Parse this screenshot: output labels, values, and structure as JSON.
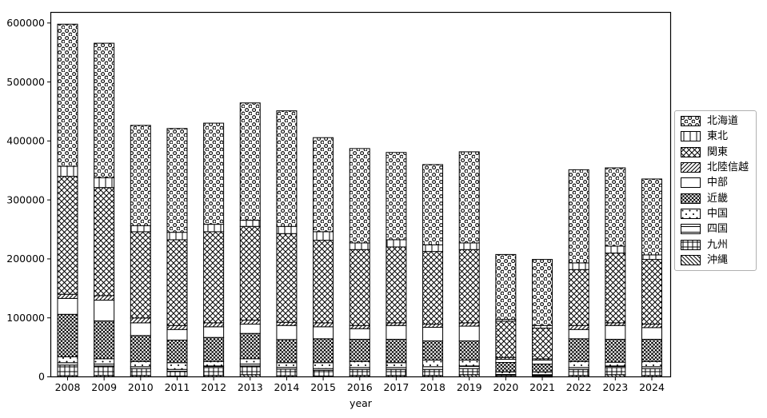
{
  "figure": {
    "background": "#ffffff"
  },
  "chart_data": {
    "type": "bar",
    "stacked": true,
    "stack_order": "first-series-on-top",
    "title": "",
    "xlabel": "year",
    "ylabel": "",
    "categories": [
      "2008",
      "2009",
      "2010",
      "2011",
      "2012",
      "2013",
      "2014",
      "2015",
      "2016",
      "2017",
      "2018",
      "2019",
      "2020",
      "2021",
      "2022",
      "2023",
      "2024"
    ],
    "yticks": [
      0,
      100000,
      200000,
      300000,
      400000,
      500000,
      600000
    ],
    "ylim": [
      0,
      618000
    ],
    "grid": false,
    "legend_position": "outside-right",
    "bar_style": {
      "fill": "#ffffff",
      "edge": "#000000",
      "monochrome_hatches": true
    },
    "colors": {
      "text": "#000000",
      "axes": "#000000",
      "legend_border": "#b0b0b0"
    },
    "series": [
      {
        "name": "北海道",
        "hatch": "o",
        "values": [
          241000,
          228000,
          170000,
          176000,
          171500,
          199000,
          196000,
          159500,
          160000,
          148000,
          136000,
          154500,
          110000,
          112000,
          158000,
          132700,
          128700
        ]
      },
      {
        "name": "東北",
        "hatch": "|",
        "values": [
          17000,
          16700,
          10300,
          12600,
          12600,
          10400,
          12200,
          14500,
          11300,
          12200,
          11300,
          11300,
          3100,
          4500,
          11300,
          11800,
          7700
        ]
      },
      {
        "name": "関東",
        "hatch": "xx",
        "values": [
          200000,
          183300,
          146300,
          145400,
          154500,
          158900,
          150400,
          140000,
          128700,
          128700,
          123200,
          124200,
          61500,
          51900,
          94800,
          118300,
          109700
        ]
      },
      {
        "name": "北陸信越",
        "hatch": "//",
        "values": [
          7000,
          7700,
          8200,
          6800,
          6700,
          6800,
          5400,
          6700,
          5400,
          4500,
          5400,
          5600,
          3100,
          2300,
          6800,
          4500,
          5900
        ]
      },
      {
        "name": "中部",
        "hatch": "",
        "values": [
          27000,
          35200,
          21600,
          18000,
          18100,
          15800,
          23900,
          20300,
          18000,
          23400,
          23100,
          25100,
          5400,
          6700,
          15700,
          23400,
          19800
        ]
      },
      {
        "name": "近畿",
        "hatch": "*",
        "values": [
          72000,
          64100,
          43900,
          38300,
          40700,
          42900,
          39200,
          40600,
          37600,
          39700,
          32500,
          32500,
          15900,
          13600,
          38500,
          38900,
          37600
        ]
      },
      {
        "name": "中国",
        "hatch": "..",
        "values": [
          10000,
          9000,
          8900,
          11400,
          7600,
          9000,
          8000,
          10000,
          10300,
          8200,
          11200,
          9900,
          4400,
          4400,
          10300,
          6300,
          8900
        ]
      },
      {
        "name": "四国",
        "hatch": "-",
        "values": [
          4000,
          3200,
          3200,
          3100,
          2700,
          3200,
          3000,
          2800,
          3200,
          3200,
          4600,
          4500,
          1000,
          1400,
          3200,
          2700,
          3200
        ]
      },
      {
        "name": "九州",
        "hatch": "+",
        "values": [
          18000,
          16200,
          11700,
          8100,
          13500,
          14800,
          11000,
          9800,
          10300,
          10300,
          10300,
          10300,
          2200,
          1800,
          10300,
          12100,
          11700
        ]
      },
      {
        "name": "沖縄",
        "hatch": "\\",
        "values": [
          2000,
          2300,
          2300,
          1400,
          2300,
          3700,
          2000,
          1400,
          2300,
          2300,
          2300,
          3700,
          900,
          500,
          2300,
          3700,
          2300
        ]
      }
    ]
  }
}
